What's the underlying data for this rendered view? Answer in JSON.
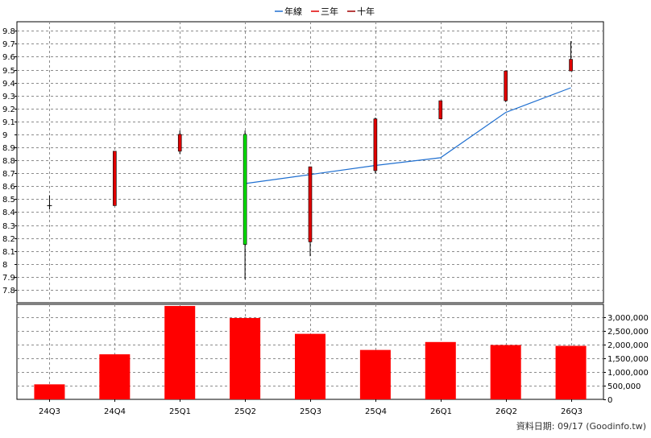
{
  "chart_data": {
    "type": "candlestick",
    "legend": [
      {
        "name": "年線",
        "color": "#1f6fd0"
      },
      {
        "name": "三年",
        "color": "#e00000"
      },
      {
        "name": "十年",
        "color": "#a00000"
      }
    ],
    "legend_position": "top-center",
    "categories": [
      "24Q3",
      "24Q4",
      "25Q1",
      "25Q2",
      "25Q3",
      "25Q4",
      "26Q1",
      "26Q2",
      "26Q3"
    ],
    "price_axis": {
      "ticks": [
        7.8,
        7.9,
        8,
        8.1,
        8.2,
        8.3,
        8.4,
        8.5,
        8.6,
        8.7,
        8.8,
        8.9,
        9,
        9.1,
        9.2,
        9.3,
        9.4,
        9.5,
        9.6,
        9.7,
        9.8
      ],
      "labels": [
        "7.8",
        "7.9",
        "8",
        "8.1",
        "8.2",
        "8.3",
        "8.4",
        "8.5",
        "8.6",
        "8.7",
        "8.8",
        "8.9",
        "9",
        "9.1",
        "9.2",
        "9.3",
        "9.4",
        "9.5",
        "9.6",
        "9.7",
        "9.8"
      ],
      "position": "left",
      "range": [
        7.7,
        9.87
      ]
    },
    "volume_axis": {
      "ticks": [
        0,
        500000,
        1000000,
        1500000,
        2000000,
        2500000,
        3000000
      ],
      "labels": [
        "0",
        "500,000",
        "1,000,000",
        "1,500,000",
        "2,000,000",
        "2,500,000",
        "3,000,000"
      ],
      "position": "right",
      "range": [
        0,
        3480000
      ]
    },
    "candles": [
      {
        "open": 8.45,
        "close": 8.45,
        "high": 8.53,
        "low": 8.42,
        "color": "#000000"
      },
      {
        "open": 8.45,
        "close": 8.87,
        "high": 8.87,
        "low": 8.45,
        "color": "#e00000"
      },
      {
        "open": 8.87,
        "close": 9.0,
        "high": 9.03,
        "low": 8.85,
        "color": "#e00000"
      },
      {
        "open": 9.0,
        "close": 8.15,
        "high": 9.03,
        "low": 7.88,
        "color": "#00dd00"
      },
      {
        "open": 8.17,
        "close": 8.75,
        "high": 8.75,
        "low": 8.06,
        "color": "#e00000"
      },
      {
        "open": 8.72,
        "close": 9.12,
        "high": 9.13,
        "low": 8.7,
        "color": "#e00000"
      },
      {
        "open": 9.12,
        "close": 9.26,
        "high": 9.26,
        "low": 9.12,
        "color": "#e00000"
      },
      {
        "open": 9.26,
        "close": 9.49,
        "high": 9.49,
        "low": 9.25,
        "color": "#e00000"
      },
      {
        "open": 9.49,
        "close": 9.58,
        "high": 9.72,
        "low": 9.49,
        "color": "#e00000"
      }
    ],
    "annual_line": {
      "name": "年線",
      "color": "#1f6fd0",
      "values": [
        null,
        null,
        null,
        8.62,
        8.69,
        8.76,
        8.82,
        9.17,
        9.36
      ]
    },
    "volume": [
      550000,
      1650000,
      3420000,
      2980000,
      2400000,
      1810000,
      2100000,
      1990000,
      1960000
    ],
    "volume_color": "#ff0000",
    "grid": true
  },
  "footer": {
    "date_label": "資料日期: 09/17",
    "source": "(Goodinfo.tw)"
  }
}
